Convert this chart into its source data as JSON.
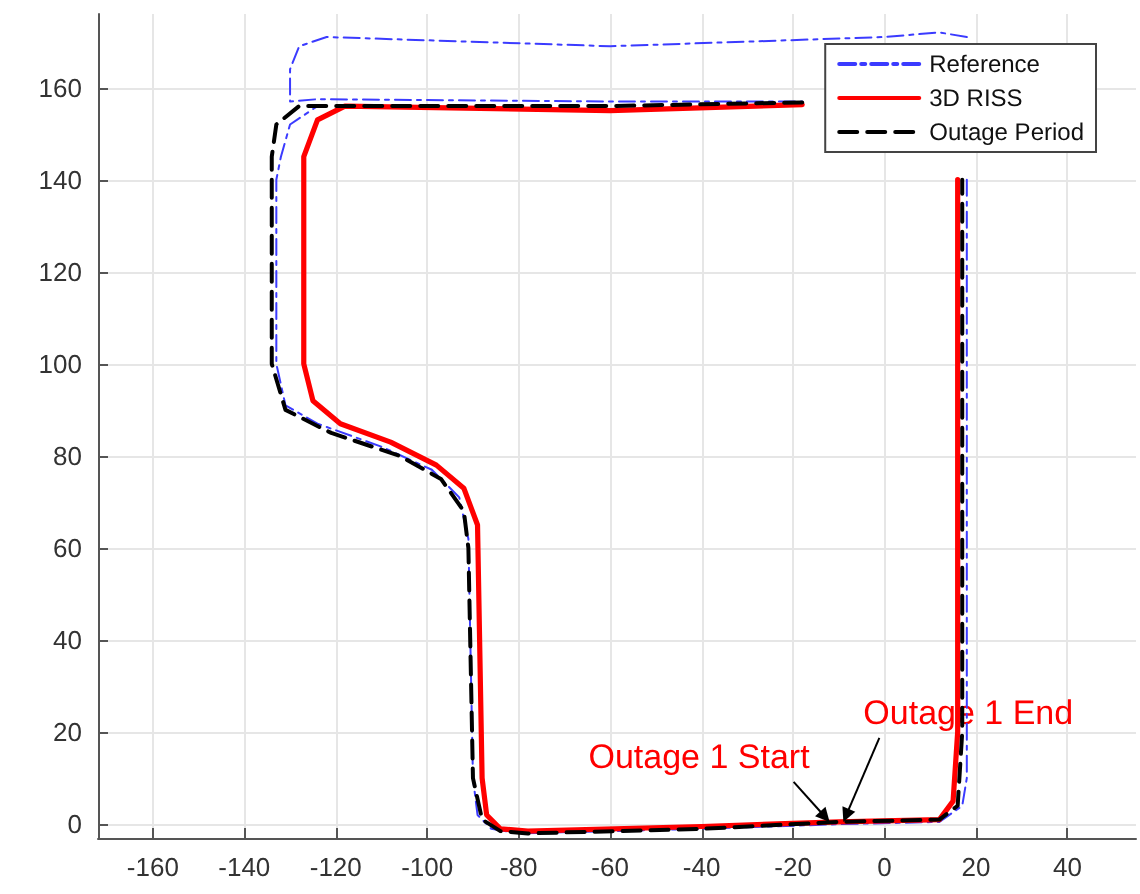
{
  "chart_data": {
    "type": "line",
    "xlim": [
      -172,
      55
    ],
    "ylim": [
      -3,
      176
    ],
    "xticks": [
      -160,
      -140,
      -120,
      -100,
      -80,
      -60,
      -40,
      -20,
      0,
      20,
      40
    ],
    "yticks": [
      0,
      20,
      40,
      60,
      80,
      100,
      120,
      140,
      160
    ],
    "grid": true,
    "legend": "top right",
    "marker": "none",
    "series": [
      {
        "name": "Reference",
        "color": "#3b3bff",
        "line_style": "dashdot",
        "x": [
          18,
          12,
          0,
          -60,
          -122,
          -128,
          -130,
          -130,
          -124,
          -60,
          -18,
          null,
          18,
          18,
          17,
          12,
          -10,
          -40,
          -80,
          -86,
          -89,
          -90,
          -91,
          -93,
          -99,
          -110,
          -124,
          -131,
          -133,
          -133,
          -132,
          -130,
          -124
        ],
        "values": [
          171,
          172,
          171,
          169,
          171,
          169,
          164,
          157,
          157.5,
          157,
          157,
          null,
          140,
          10,
          4,
          0.5,
          0,
          -1,
          -2,
          -1,
          2,
          10,
          62,
          71,
          77,
          82,
          87,
          91,
          100,
          140,
          145,
          152,
          156
        ]
      },
      {
        "name": "3D RISS",
        "color": "#ff0000",
        "line_style": "solid",
        "x": [
          -18,
          -60,
          -118,
          -124,
          -127,
          -127,
          -125,
          -119,
          -108,
          -98,
          -92,
          -89,
          -88,
          -87,
          -84,
          -78,
          -40,
          -10,
          12,
          15,
          16,
          16
        ],
        "values": [
          156.3,
          155,
          156,
          153,
          145,
          100,
          92,
          87,
          83,
          78,
          73,
          65,
          10,
          2,
          -1,
          -1.5,
          -0.5,
          0.5,
          1,
          5,
          20,
          140
        ]
      },
      {
        "name": "Outage Period",
        "color": "#000000",
        "line_style": "dashed",
        "x": [
          -18,
          -60,
          -128,
          -133,
          -134,
          -134,
          -131,
          -121,
          -106,
          -97,
          -92,
          -91,
          -90,
          -88,
          -84,
          -78,
          -40,
          -10,
          12,
          16,
          17,
          17
        ],
        "values": [
          156.8,
          156,
          156,
          152,
          145,
          100,
          90,
          85,
          80,
          75,
          68,
          60,
          10,
          1,
          -1.5,
          -2,
          -1,
          0.5,
          1,
          4,
          20,
          140
        ]
      }
    ],
    "annotations": [
      {
        "text": "Outage 1 Start",
        "x": -12,
        "y": 0.5
      },
      {
        "text": "Outage 1 End",
        "x": -9,
        "y": 0.5
      }
    ]
  }
}
